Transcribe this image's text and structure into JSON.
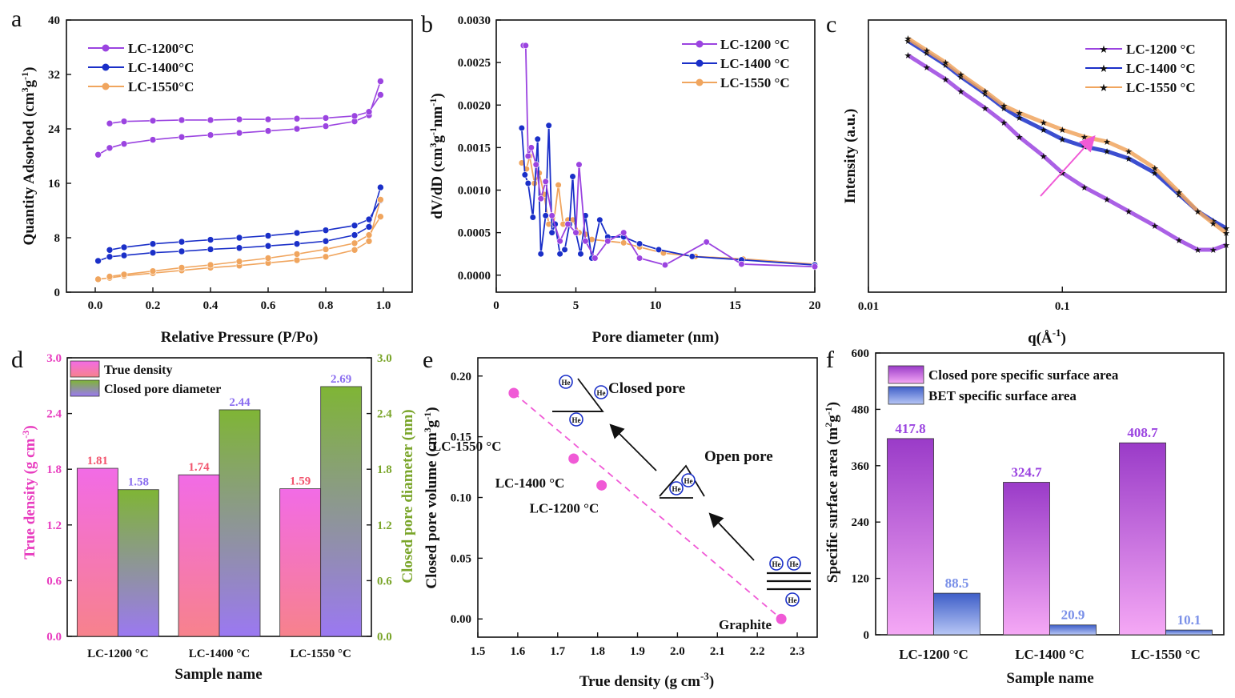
{
  "colors": {
    "c1200": "#9b44e0",
    "c1400": "#1a2fc8",
    "c1550": "#f0a55e",
    "pink": "#f05ad6",
    "green": "#7fb535",
    "salmon": "#f2556e",
    "lavender": "#8a6df0",
    "blue_bar": "#7a90e8",
    "text_pink": "#e83cbf",
    "text_green": "#7aa52a"
  },
  "chart_data": [
    {
      "panel": "a",
      "type": "line",
      "xlabel": "Relative Pressure (P/Po)",
      "ylabel": "Quantity Adsorbed (cm³g⁻¹)",
      "ylabel_main": "Quantity Adsorbed (cm",
      "ylabel_sup1": "3",
      "ylabel_mid": "g",
      "ylabel_sup2": "-1",
      "ylabel_end": ")",
      "xlim": [
        -0.1,
        1.1
      ],
      "ylim": [
        0,
        40
      ],
      "xticks": [
        "0.0",
        "0.2",
        "0.4",
        "0.6",
        "0.8",
        "1.0"
      ],
      "yticks": [
        "0",
        "8",
        "16",
        "24",
        "32",
        "40"
      ],
      "legend": [
        "LC-1200°C",
        "LC-1400°C",
        "LC-1550°C"
      ],
      "series": [
        {
          "name": "LC-1200°C adsorption",
          "x": [
            0.01,
            0.05,
            0.1,
            0.2,
            0.3,
            0.4,
            0.5,
            0.6,
            0.7,
            0.8,
            0.9,
            0.95,
            0.99
          ],
          "y": [
            20.2,
            21.2,
            21.8,
            22.4,
            22.8,
            23.1,
            23.4,
            23.7,
            24.0,
            24.4,
            25.1,
            26.0,
            31.0
          ]
        },
        {
          "name": "LC-1200°C desorption",
          "x": [
            0.99,
            0.95,
            0.9,
            0.8,
            0.7,
            0.6,
            0.5,
            0.4,
            0.3,
            0.2,
            0.1,
            0.05
          ],
          "y": [
            29.0,
            26.5,
            25.9,
            25.6,
            25.5,
            25.4,
            25.4,
            25.3,
            25.3,
            25.2,
            25.1,
            24.8
          ]
        },
        {
          "name": "LC-1400°C adsorption",
          "x": [
            0.01,
            0.05,
            0.1,
            0.2,
            0.3,
            0.4,
            0.5,
            0.6,
            0.7,
            0.8,
            0.9,
            0.95,
            0.99
          ],
          "y": [
            4.6,
            5.2,
            5.4,
            5.8,
            6.0,
            6.3,
            6.5,
            6.8,
            7.1,
            7.5,
            8.4,
            9.6,
            15.4
          ]
        },
        {
          "name": "LC-1400°C desorption",
          "x": [
            0.99,
            0.95,
            0.9,
            0.8,
            0.7,
            0.6,
            0.5,
            0.4,
            0.3,
            0.2,
            0.1,
            0.05
          ],
          "y": [
            13.5,
            10.7,
            9.8,
            9.1,
            8.7,
            8.3,
            8.0,
            7.7,
            7.4,
            7.1,
            6.6,
            6.2
          ]
        },
        {
          "name": "LC-1550°C adsorption",
          "x": [
            0.01,
            0.05,
            0.1,
            0.2,
            0.3,
            0.4,
            0.5,
            0.6,
            0.7,
            0.8,
            0.9,
            0.95,
            0.99
          ],
          "y": [
            1.9,
            2.1,
            2.4,
            2.8,
            3.2,
            3.6,
            3.9,
            4.3,
            4.7,
            5.2,
            6.2,
            7.5,
            13.6
          ]
        },
        {
          "name": "LC-1550°C desorption",
          "x": [
            0.99,
            0.95,
            0.9,
            0.8,
            0.7,
            0.6,
            0.5,
            0.4,
            0.3,
            0.2,
            0.1,
            0.05
          ],
          "y": [
            11.1,
            8.4,
            7.2,
            6.3,
            5.6,
            5.0,
            4.5,
            4.0,
            3.6,
            3.1,
            2.6,
            2.3
          ]
        }
      ]
    },
    {
      "panel": "b",
      "type": "line",
      "xlabel": "Pore diameter (nm)",
      "ylabel_main": "dV/dD (cm",
      "ylabel_sup1": "3",
      "ylabel_mid": "g",
      "ylabel_sup2": "-1",
      "ylabel_mid2": "nm",
      "ylabel_sup3": "-1",
      "ylabel_end": ")",
      "xlim": [
        0,
        20
      ],
      "ylim": [
        -0.0002,
        0.003
      ],
      "xticks": [
        "0",
        "5",
        "10",
        "15",
        "20"
      ],
      "yticks": [
        "0.0000",
        "0.0005",
        "0.0010",
        "0.0015",
        "0.0020",
        "0.0025",
        "0.0030"
      ],
      "legend": [
        "LC-1200 °C",
        "LC-1400 °C",
        "LC-1550 °C"
      ],
      "series": [
        {
          "name": "LC-1200 °C",
          "x": [
            1.7,
            1.85,
            2.0,
            2.2,
            2.5,
            2.8,
            3.1,
            3.5,
            4.0,
            4.5,
            5.0,
            5.2,
            5.6,
            6.2,
            7.0,
            8.0,
            9.0,
            10.6,
            13.2,
            15.4,
            20
          ],
          "y": [
            0.0027,
            0.0027,
            0.0014,
            0.0015,
            0.0013,
            0.0009,
            0.0011,
            0.0007,
            0.0004,
            0.0006,
            0.0005,
            0.0013,
            0.0004,
            0.0002,
            0.0004,
            0.0005,
            0.0002,
            0.00012,
            0.00039,
            0.00013,
            0.0001
          ]
        },
        {
          "name": "LC-1400 °C",
          "x": [
            1.6,
            1.8,
            2.0,
            2.3,
            2.6,
            2.8,
            3.1,
            3.3,
            3.5,
            3.7,
            4.0,
            4.3,
            4.6,
            4.8,
            5.0,
            5.3,
            5.6,
            6.0,
            6.5,
            7.0,
            8.0,
            9.0,
            10.2,
            12.3,
            15.4,
            20
          ],
          "y": [
            0.00173,
            0.00118,
            0.00108,
            0.00068,
            0.0016,
            0.00025,
            0.0007,
            0.00176,
            0.0005,
            0.0006,
            0.00025,
            0.0003,
            0.0006,
            0.00116,
            0.0005,
            0.00025,
            0.0007,
            0.0002,
            0.00065,
            0.00045,
            0.00045,
            0.00037,
            0.0003,
            0.00022,
            0.00018,
            0.00012
          ]
        },
        {
          "name": "LC-1550 °C",
          "x": [
            1.6,
            1.9,
            2.1,
            2.4,
            2.7,
            3.0,
            3.3,
            3.6,
            3.9,
            4.2,
            4.5,
            4.8,
            5.2,
            5.6,
            6.0,
            7.0,
            8.0,
            9.0,
            10.5,
            12.5,
            15.5,
            20
          ],
          "y": [
            0.00132,
            0.00125,
            0.0014,
            0.00108,
            0.0012,
            0.00095,
            0.0006,
            0.0006,
            0.00106,
            0.0006,
            0.00065,
            0.00065,
            0.0005,
            0.00048,
            0.00042,
            0.0004,
            0.00038,
            0.00033,
            0.00026,
            0.00022,
            0.00019,
            0.00013
          ]
        }
      ]
    },
    {
      "panel": "c",
      "type": "scatter",
      "xlabel_main": "q(Å",
      "xlabel_sup": "-1",
      "xlabel_end": ")",
      "ylabel": "Intensity (a.u.)",
      "xscale": "log",
      "xlim": [
        0.01,
        0.7
      ],
      "xticks": [
        "0.01",
        "0.1"
      ],
      "legend": [
        "LC-1200 °C",
        "LC-1400 °C",
        "LC-1550 °C"
      ],
      "series": [
        {
          "name": "LC-1200 °C",
          "x": [
            0.016,
            0.02,
            0.025,
            0.03,
            0.04,
            0.05,
            0.06,
            0.08,
            0.1,
            0.13,
            0.17,
            0.22,
            0.3,
            0.4,
            0.5,
            0.6,
            0.7
          ],
          "y": [
            0.92,
            0.87,
            0.82,
            0.77,
            0.7,
            0.64,
            0.58,
            0.5,
            0.43,
            0.37,
            0.32,
            0.27,
            0.21,
            0.15,
            0.11,
            0.11,
            0.13
          ]
        },
        {
          "name": "LC-1400 °C",
          "x": [
            0.016,
            0.02,
            0.025,
            0.03,
            0.04,
            0.05,
            0.06,
            0.08,
            0.1,
            0.13,
            0.17,
            0.22,
            0.3,
            0.4,
            0.5,
            0.6,
            0.7
          ],
          "y": [
            0.98,
            0.93,
            0.88,
            0.83,
            0.76,
            0.7,
            0.66,
            0.61,
            0.57,
            0.54,
            0.52,
            0.49,
            0.43,
            0.34,
            0.27,
            0.23,
            0.2
          ]
        },
        {
          "name": "LC-1550 °C",
          "x": [
            0.016,
            0.02,
            0.025,
            0.03,
            0.04,
            0.05,
            0.06,
            0.08,
            0.1,
            0.13,
            0.17,
            0.22,
            0.3,
            0.4,
            0.5,
            0.6,
            0.7
          ],
          "y": [
            0.99,
            0.94,
            0.89,
            0.84,
            0.77,
            0.71,
            0.68,
            0.64,
            0.61,
            0.58,
            0.56,
            0.52,
            0.45,
            0.35,
            0.27,
            0.22,
            0.18
          ]
        }
      ]
    },
    {
      "panel": "d",
      "type": "bar",
      "xlabel": "Sample name",
      "ylabel_main": "True density (g cm",
      "ylabel_sup": "-3",
      "ylabel_end": ")",
      "y2label": "Closed pore diameter (nm)",
      "categories": [
        "LC-1200 °C",
        "LC-1400 °C",
        "LC-1550 °C"
      ],
      "ylim": [
        0,
        3.0
      ],
      "y2lim": [
        0,
        3.0
      ],
      "yticks": [
        "0.0",
        "0.6",
        "1.2",
        "1.8",
        "2.4",
        "3.0"
      ],
      "legend": [
        "True density",
        "Closed pore diameter"
      ],
      "series": [
        {
          "name": "True density",
          "values": [
            1.81,
            1.74,
            1.59
          ],
          "labels": [
            "1.81",
            "1.74",
            "1.59"
          ]
        },
        {
          "name": "Closed pore diameter",
          "values": [
            1.58,
            2.44,
            2.69
          ],
          "labels": [
            "1.58",
            "2.44",
            "2.69"
          ]
        }
      ]
    },
    {
      "panel": "e",
      "type": "scatter",
      "xlabel_main": "True density (g cm",
      "xlabel_sup": "-3",
      "xlabel_end": ")",
      "ylabel_main": "Closed pore volume (cm",
      "ylabel_sup1": "3",
      "ylabel_mid": "g",
      "ylabel_sup2": "-1",
      "ylabel_end": ")",
      "xlim": [
        1.5,
        2.35
      ],
      "ylim": [
        -0.015,
        0.215
      ],
      "xticks": [
        "1.5",
        "1.6",
        "1.7",
        "1.8",
        "1.9",
        "2.0",
        "2.1",
        "2.2",
        "2.3"
      ],
      "yticks": [
        "0.00",
        "0.05",
        "0.10",
        "0.15",
        "0.20"
      ],
      "points": [
        {
          "label": "LC-1550 °C",
          "x": 1.59,
          "y": 0.186
        },
        {
          "label": "LC-1400 °C",
          "x": 1.74,
          "y": 0.132
        },
        {
          "label": "LC-1200 °C",
          "x": 1.81,
          "y": 0.11
        },
        {
          "label": "Graphite",
          "x": 2.26,
          "y": 0.0
        }
      ],
      "annotations": {
        "closed_pore": "Closed pore",
        "open_pore": "Open pore",
        "he": "He"
      }
    },
    {
      "panel": "f",
      "type": "bar",
      "xlabel": "Sample name",
      "ylabel_main": "Specific surface area (m",
      "ylabel_sup1": "2",
      "ylabel_mid": "g",
      "ylabel_sup2": "-1",
      "ylabel_end": ")",
      "categories": [
        "LC-1200 °C",
        "LC-1400 °C",
        "LC-1550 °C"
      ],
      "ylim": [
        0,
        600
      ],
      "yticks": [
        "0",
        "120",
        "240",
        "360",
        "480",
        "600"
      ],
      "legend": [
        "Closed pore specific surface area",
        "BET specific surface area"
      ],
      "series": [
        {
          "name": "Closed pore specific surface area",
          "values": [
            417.8,
            324.7,
            408.7
          ],
          "labels": [
            "417.8",
            "324.7",
            "408.7"
          ]
        },
        {
          "name": "BET specific surface area",
          "values": [
            88.5,
            20.9,
            10.1
          ],
          "labels": [
            "88.5",
            "20.9",
            "10.1"
          ]
        }
      ]
    }
  ],
  "panel_labels": [
    "a",
    "b",
    "c",
    "d",
    "e",
    "f"
  ]
}
